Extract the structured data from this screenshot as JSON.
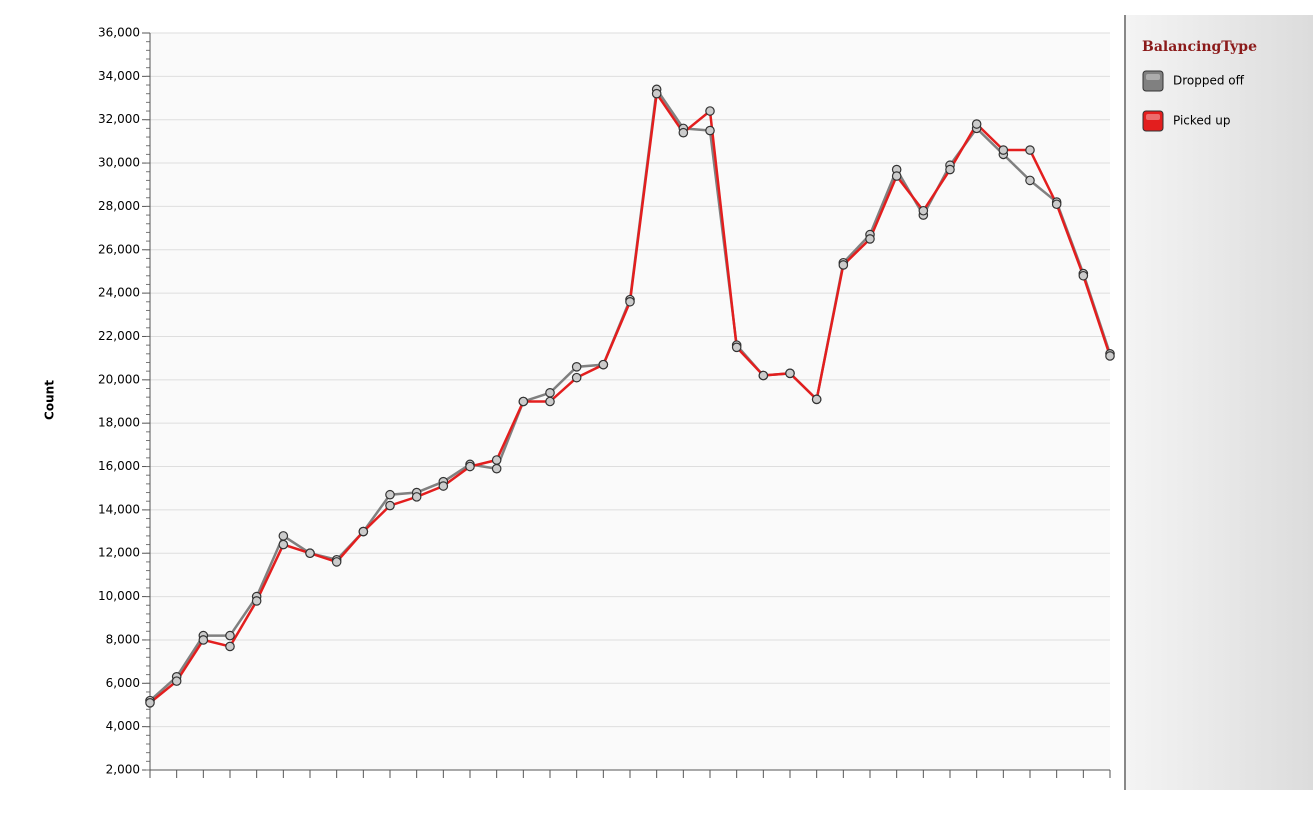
{
  "chart_data": {
    "type": "line",
    "y_label": "Count",
    "legend_title": "BalancingType",
    "legend": "right",
    "grid": true,
    "categories": [
      null,
      null,
      null,
      null,
      null,
      null,
      null,
      null,
      null,
      null,
      null,
      null,
      null,
      null,
      null,
      null,
      null,
      null,
      null,
      null,
      null,
      null,
      null,
      null,
      null,
      null,
      null,
      null,
      null,
      null,
      null,
      null,
      null,
      null,
      null,
      null,
      null
    ],
    "ylim": [
      2000,
      36000
    ],
    "yticks": [
      {
        "value": 2000,
        "label": "2,000"
      },
      {
        "value": 4000,
        "label": "4,000"
      },
      {
        "value": 6000,
        "label": "6,000"
      },
      {
        "value": 8000,
        "label": "8,000"
      },
      {
        "value": 10000,
        "label": "10,000"
      },
      {
        "value": 12000,
        "label": "12,000"
      },
      {
        "value": 14000,
        "label": "14,000"
      },
      {
        "value": 16000,
        "label": "16,000"
      },
      {
        "value": 18000,
        "label": "18,000"
      },
      {
        "value": 20000,
        "label": "20,000"
      },
      {
        "value": 22000,
        "label": "22,000"
      },
      {
        "value": 24000,
        "label": "24,000"
      },
      {
        "value": 26000,
        "label": "26,000"
      },
      {
        "value": 28000,
        "label": "28,000"
      },
      {
        "value": 30000,
        "label": "30,000"
      },
      {
        "value": 32000,
        "label": "32,000"
      },
      {
        "value": 34000,
        "label": "34,000"
      },
      {
        "value": 36000,
        "label": "36,000"
      }
    ],
    "series": [
      {
        "name": "Dropped off",
        "color": "#808080",
        "values": [
          5200,
          6300,
          8200,
          8200,
          10000,
          12800,
          12000,
          11700,
          13000,
          14700,
          14800,
          15300,
          16100,
          15900,
          19000,
          19400,
          20600,
          20700,
          23700,
          33400,
          31600,
          31500,
          21600,
          20200,
          20300,
          19100,
          25400,
          26700,
          29700,
          27600,
          29900,
          31600,
          30400,
          29200,
          28200,
          24900,
          21200
        ]
      },
      {
        "name": "Picked up",
        "color": "#e31e1e",
        "values": [
          5100,
          6100,
          8000,
          7700,
          9800,
          12400,
          12000,
          11600,
          13000,
          14200,
          14600,
          15100,
          16000,
          16300,
          19000,
          19000,
          20100,
          20700,
          23600,
          33200,
          31400,
          32400,
          21500,
          20200,
          20300,
          19100,
          25300,
          26500,
          29400,
          27800,
          29700,
          31800,
          30600,
          30600,
          28100,
          24800,
          21100
        ]
      }
    ]
  }
}
